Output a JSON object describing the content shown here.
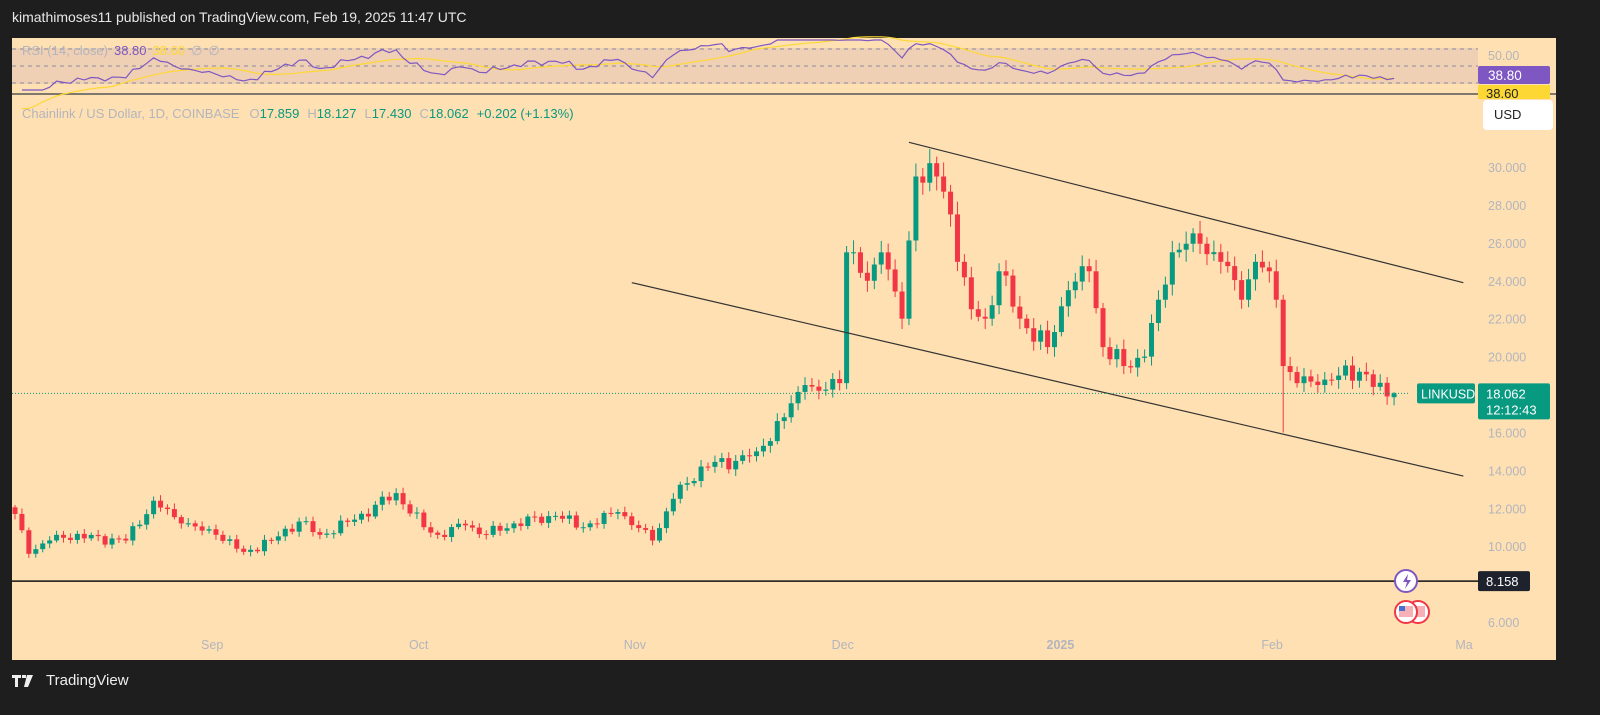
{
  "header": {
    "published": "kimathimoses11 published on TradingView.com, Feb 19, 2025 11:47 UTC"
  },
  "footer": {
    "brand": "TradingView",
    "logo_icon": "tradingview-logo-icon"
  },
  "colors": {
    "background": "#ffe0b2",
    "up": "#089981",
    "down": "#f23645",
    "rsi": "#7e57c2",
    "rsi_ma": "#fdd835",
    "frame": "#1e1e1e"
  },
  "rsi_pane": {
    "title": "RSI (14, close)",
    "value": "38.80",
    "ma_value": "38.60",
    "extra1": "∅",
    "extra2": "∅",
    "levels": [
      70,
      50,
      30
    ],
    "level_label": "50.00",
    "value_label": "38.80",
    "ma_label": "38.60"
  },
  "legend": {
    "symbol": "Chainlink / US Dollar, 1D, COINBASE",
    "o_label": "O",
    "o": "17.859",
    "h_label": "H",
    "h": "18.127",
    "l_label": "L",
    "l": "17.430",
    "c_label": "C",
    "c": "18.062",
    "change": "+0.202 (+1.13%)"
  },
  "currency_button": "USD",
  "price_tag": {
    "symbol": "LINKUSD",
    "price": "18.062",
    "countdown": "12:12:43"
  },
  "hline": {
    "value": 8.158,
    "label": "8.158"
  },
  "chart_data": {
    "type": "candlestick",
    "ylim": [
      5.3,
      31.5
    ],
    "yticks": [
      "30.000",
      "28.000",
      "26.000",
      "24.000",
      "22.000",
      "20.000",
      "16.000",
      "14.000",
      "12.000",
      "10.000",
      "6.000"
    ],
    "ytick_values": [
      30,
      28,
      26,
      24,
      22,
      20,
      16,
      14,
      12,
      10,
      6
    ],
    "xticks": [
      {
        "label": "Sep",
        "date": "2024-09-01"
      },
      {
        "label": "Oct",
        "date": "2024-10-01"
      },
      {
        "label": "Nov",
        "date": "2024-11-01"
      },
      {
        "label": "Dec",
        "date": "2024-12-01"
      },
      {
        "label": "2025",
        "date": "2025-01-01"
      },
      {
        "label": "Feb",
        "date": "2025-02-01"
      },
      {
        "label": "Ma",
        "date": "2025-03-01"
      }
    ],
    "xlim": [
      "2024-08-04",
      "2025-03-02"
    ],
    "close_keypoints": [
      [
        "2024-08-04",
        11.7
      ],
      [
        "2024-08-06",
        9.6
      ],
      [
        "2024-08-10",
        10.6
      ],
      [
        "2024-08-20",
        10.3
      ],
      [
        "2024-08-24",
        12.4
      ],
      [
        "2024-08-28",
        11.2
      ],
      [
        "2024-09-02",
        10.6
      ],
      [
        "2024-09-06",
        9.7
      ],
      [
        "2024-09-10",
        10.3
      ],
      [
        "2024-09-14",
        11.3
      ],
      [
        "2024-09-17",
        10.6
      ],
      [
        "2024-09-22",
        11.4
      ],
      [
        "2024-09-28",
        12.8
      ],
      [
        "2024-10-02",
        11.0
      ],
      [
        "2024-10-04",
        10.6
      ],
      [
        "2024-10-08",
        11.1
      ],
      [
        "2024-10-11",
        10.6
      ],
      [
        "2024-10-15",
        11.2
      ],
      [
        "2024-10-21",
        11.6
      ],
      [
        "2024-10-25",
        11.0
      ],
      [
        "2024-10-30",
        11.8
      ],
      [
        "2024-11-04",
        10.3
      ],
      [
        "2024-11-07",
        12.5
      ],
      [
        "2024-11-11",
        14.2
      ],
      [
        "2024-11-16",
        14.5
      ],
      [
        "2024-11-19",
        15.0
      ],
      [
        "2024-11-23",
        16.8
      ],
      [
        "2024-11-26",
        18.5
      ],
      [
        "2024-11-28",
        18.2
      ],
      [
        "2024-12-01",
        18.6
      ],
      [
        "2024-12-02",
        25.5
      ],
      [
        "2024-12-05",
        24.0
      ],
      [
        "2024-12-07",
        25.5
      ],
      [
        "2024-12-10",
        22.0
      ],
      [
        "2024-12-12",
        29.5
      ],
      [
        "2024-12-15",
        29.5
      ],
      [
        "2024-12-17",
        27.5
      ],
      [
        "2024-12-18",
        25.0
      ],
      [
        "2024-12-20",
        22.5
      ],
      [
        "2024-12-22",
        22.0
      ],
      [
        "2024-12-24",
        24.5
      ],
      [
        "2024-12-27",
        22.0
      ],
      [
        "2024-12-31",
        20.5
      ],
      [
        "2025-01-03",
        23.5
      ],
      [
        "2025-01-06",
        24.5
      ],
      [
        "2025-01-08",
        20.5
      ],
      [
        "2025-01-11",
        19.5
      ],
      [
        "2025-01-14",
        20.0
      ],
      [
        "2025-01-16",
        23.0
      ],
      [
        "2025-01-18",
        25.5
      ],
      [
        "2025-01-21",
        26.5
      ],
      [
        "2025-01-25",
        25.0
      ],
      [
        "2025-01-28",
        23.0
      ],
      [
        "2025-01-30",
        25.0
      ],
      [
        "2025-02-01",
        24.5
      ],
      [
        "2025-02-02",
        23.0
      ],
      [
        "2025-02-03",
        19.5
      ],
      [
        "2025-02-05",
        18.6
      ],
      [
        "2025-02-08",
        18.5
      ],
      [
        "2025-02-11",
        19.0
      ],
      [
        "2025-02-14",
        19.2
      ],
      [
        "2025-02-18",
        17.9
      ],
      [
        "2025-02-19",
        18.062
      ]
    ],
    "last_candle": {
      "date": "2025-02-19",
      "open": 17.859,
      "high": 18.127,
      "low": 17.43,
      "close": 18.062
    },
    "trendlines": [
      {
        "from": [
          "2024-12-11",
          31.3
        ],
        "to": [
          "2025-03-01",
          23.9
        ]
      },
      {
        "from": [
          "2024-11-01",
          23.9
        ],
        "to": [
          "2025-03-01",
          13.7
        ]
      }
    ],
    "grid": false
  }
}
